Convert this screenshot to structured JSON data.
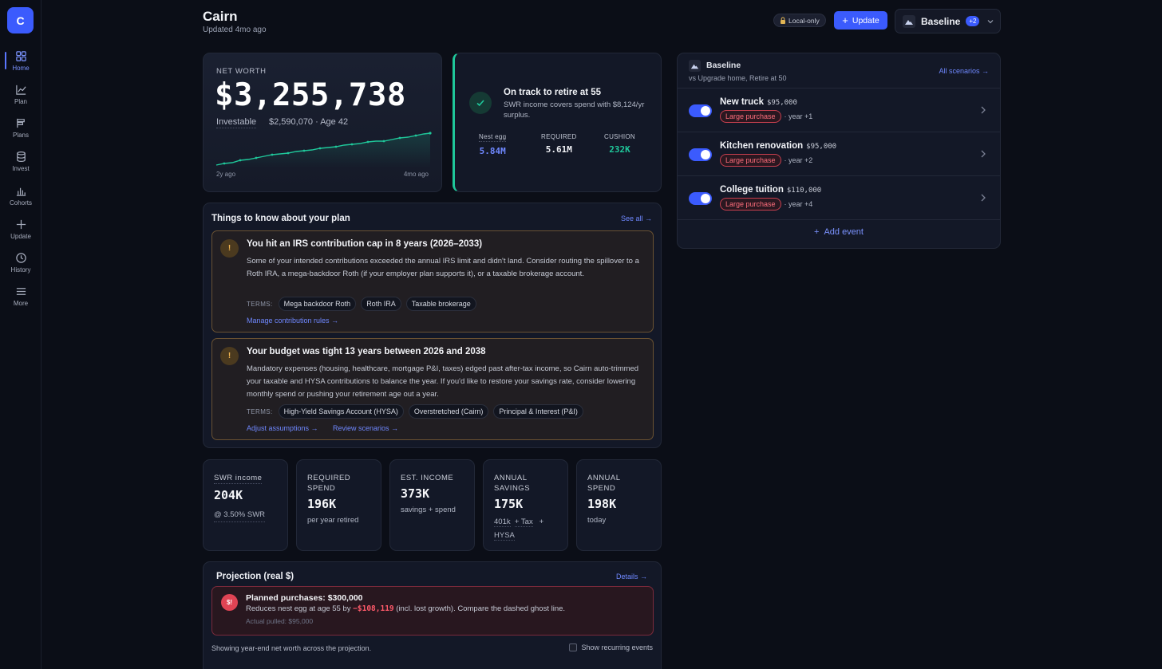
{
  "colors": {
    "accent": "#3b5bfd",
    "positive": "#1fc79a",
    "warning": "#f0b450",
    "danger": "#e04454"
  },
  "sidebar": {
    "logo": "C",
    "items": [
      {
        "label": "Home",
        "icon": "grid-icon"
      },
      {
        "label": "Plan",
        "icon": "chart-line-icon"
      },
      {
        "label": "Plans",
        "icon": "flag-icon"
      },
      {
        "label": "Invest",
        "icon": "database-icon"
      },
      {
        "label": "Cohorts",
        "icon": "bar-chart-icon"
      },
      {
        "label": "Update",
        "icon": "plus-icon"
      },
      {
        "label": "History",
        "icon": "clock-icon"
      },
      {
        "label": "More",
        "icon": "menu-icon"
      }
    ]
  },
  "header": {
    "title": "Cairn",
    "subtitle": "Updated 4mo ago",
    "local_badge": "Local-only",
    "update_label": "Update",
    "scenario_label": "Baseline",
    "scenario_count": "+2"
  },
  "net_worth": {
    "label": "NET WORTH",
    "value": "$3,255,738",
    "investable_label": "Investable",
    "investable_value": "$2,590,070 · Age 42",
    "start_label": "2y ago",
    "end_label": "4mo ago"
  },
  "track": {
    "title": "On track to retire at 55",
    "desc": "SWR income covers spend with $8,124/yr surplus.",
    "stats": [
      {
        "label": "Nest egg",
        "value": "5.84M"
      },
      {
        "label": "REQUIRED",
        "value": "5.61M"
      },
      {
        "label": "CUSHION",
        "value": "232K"
      }
    ]
  },
  "things": {
    "title": "Things to know about your plan",
    "see_all": "See all →",
    "terms_label": "TERMS:",
    "alerts": [
      {
        "icon": "!",
        "title": "You hit an IRS contribution cap in 8 years (2026–2033)",
        "body": "Some of your intended contributions exceeded the annual IRS limit and didn't land. Consider routing the spillover to a Roth IRA, a mega-backdoor Roth (if your employer plan supports it), or a taxable brokerage account.",
        "terms": [
          "Mega backdoor Roth",
          "Roth IRA",
          "Taxable brokerage"
        ],
        "links": [
          "Manage contribution rules →"
        ]
      },
      {
        "icon": "!",
        "title": "Your budget was tight 13 years between 2026 and 2038",
        "body": "Mandatory expenses (housing, healthcare, mortgage P&I, taxes) edged past after-tax income, so Cairn auto-trimmed your taxable and HYSA contributions to balance the year. If you'd like to restore your savings rate, consider lowering monthly spend or pushing your retirement age out a year.",
        "terms": [
          "High-Yield Savings Account (HYSA)",
          "Overstretched (Cairn)",
          "Principal & Interest (P&I)"
        ],
        "links": [
          "Adjust assumptions →",
          "Review scenarios →"
        ]
      }
    ]
  },
  "metrics": [
    {
      "label": "SWR income",
      "value": "204K",
      "sub": "@ 3.50% SWR"
    },
    {
      "label": "REQUIRED SPEND",
      "value": "196K",
      "sub": "per year retired"
    },
    {
      "label": "EST. INCOME",
      "value": "373K",
      "sub": "savings + spend"
    },
    {
      "label": "ANNUAL SAVINGS",
      "value": "175K",
      "sub_parts": [
        "401k",
        "+ Tax",
        "+",
        "HYSA"
      ]
    },
    {
      "label": "ANNUAL SPEND",
      "value": "198K",
      "sub": "today"
    }
  ],
  "projection": {
    "title": "Projection (real $)",
    "details": "Details →",
    "planned_icon": "$!",
    "planned_title": "Planned purchases: $300,000",
    "planned_desc_pre": "Reduces nest egg at age 55 by ",
    "planned_desc_amount": "−$108,119",
    "planned_desc_post": " (incl. lost growth). Compare the dashed ghost line.",
    "planned_sub": "Actual pulled: $95,000",
    "showing": "Showing year-end net worth across the projection.",
    "recurring_label": "Show recurring events"
  },
  "scenarios_panel": {
    "title": "Baseline",
    "subtitle": "vs Upgrade home, Retire at 50",
    "all_link": "All scenarios →",
    "events": [
      {
        "name": "New truck",
        "amount": "$95,000",
        "tag": "Large purchase",
        "when": "· year +1",
        "enabled": true
      },
      {
        "name": "Kitchen renovation",
        "amount": "$95,000",
        "tag": "Large purchase",
        "when": "· year +2",
        "enabled": true
      },
      {
        "name": "College tuition",
        "amount": "$110,000",
        "tag": "Large purchase",
        "when": "· year +4",
        "enabled": true
      }
    ],
    "add_event": "Add event"
  }
}
